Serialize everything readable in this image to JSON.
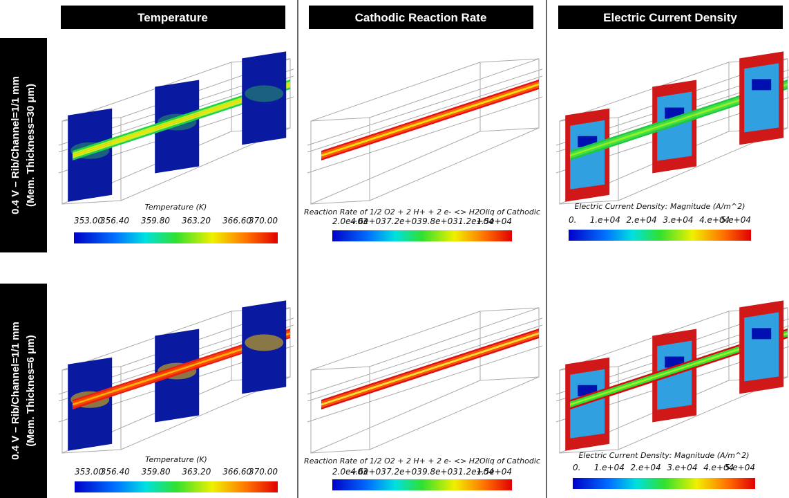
{
  "columns": [
    {
      "title": "Temperature"
    },
    {
      "title": "Cathodic  Reaction Rate"
    },
    {
      "title": "Electric  Current Density"
    }
  ],
  "rows": [
    {
      "label_line1": "0.4 V – Rib/Channel=1/1  mm",
      "label_line2": "(Mem.  Thickness=30  μm)",
      "panels": [
        {
          "legend_title": "Temperature (K)",
          "ticks": [
            "353.00",
            "356.40",
            "359.80",
            "363.20",
            "366.60",
            "370.00"
          ]
        },
        {
          "legend_title": "Reaction Rate of 1/2 O2 + 2 H+ + 2 e- <> H2Oliq of Cathodic",
          "ticks": [
            "2.0e+03",
            "4.6e+03",
            "7.2e+03",
            "9.8e+03",
            "1.2e+04",
            "1.5e+04"
          ]
        },
        {
          "legend_title": "Electric Current Density: Magnitude (A/m^2)",
          "ticks": [
            "0.",
            "1.e+04",
            "2.e+04",
            "3.e+04",
            "4.e+04",
            "5.e+04"
          ]
        }
      ]
    },
    {
      "label_line1": "0.4 V – Rib/Channel=1/1  mm",
      "label_line2": "(Mem.  Thicknes=6  μm)",
      "panels": [
        {
          "legend_title": "Temperature (K)",
          "ticks": [
            "353.00",
            "356.40",
            "359.80",
            "363.20",
            "366.60",
            "370.00"
          ]
        },
        {
          "legend_title": "Reaction Rate of 1/2 O2 + 2 H+ + 2 e- <> H2Oliq of Cathodic",
          "ticks": [
            "2.0e+03",
            "4.6e+03",
            "7.2e+03",
            "9.8e+03",
            "1.2e+04",
            "1.5e+04"
          ]
        },
        {
          "legend_title": "Electric Current Density: Magnitude (A/m^2)",
          "ticks": [
            "0.",
            "1.e+04",
            "2.e+04",
            "3.e+04",
            "4.e+04",
            "5.e+04"
          ]
        }
      ]
    }
  ]
}
